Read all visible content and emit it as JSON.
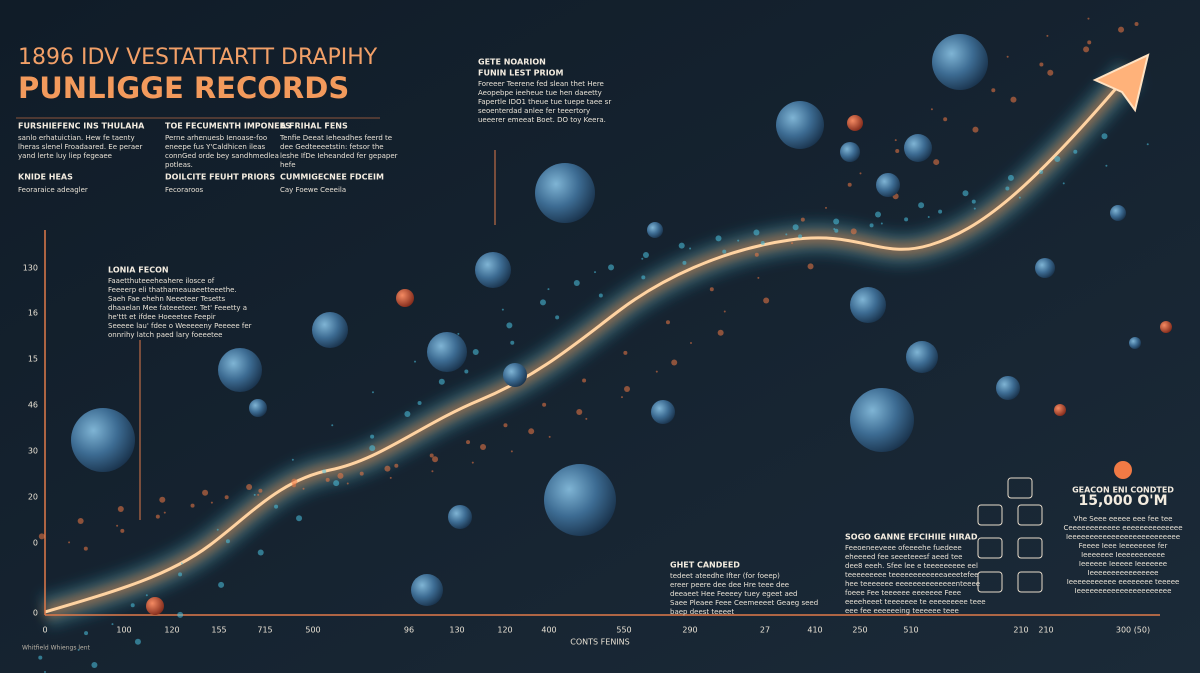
{
  "header": {
    "title_line1": "1896 IDV VESTATTARTT DRAPIHY",
    "title_line2": "PUNLIGGE RECORDS"
  },
  "columns": [
    {
      "heading": "FURSHIEFENC INS THULAHA",
      "body": [
        "sanlo erhatuictian. Hew fe taenty",
        "lheras slenel Froadaared. Ee peraer",
        "yand lerte luy liep fegeaee"
      ],
      "subheading": "KNIDE HEAS",
      "note": "Feoraraice adeagler"
    },
    {
      "heading": "TOE FECUMENTH IMPONEES",
      "body": [
        "Perne arhenuesb Ienoase-foo",
        "eneepe fus Y'Caldhicen ileas",
        "connGed orde bey sandhmedlea",
        "potleas."
      ],
      "subheading": "DOILCITE FEUHT PRIORS",
      "note": "Fecoraroos"
    },
    {
      "heading": "A FRIHAL FENS",
      "body": [
        "Tenfie Deeat Ieheadhes feerd te",
        "dee Gedteeeetstin: fetsor the",
        "leshe IfDe Ieheanded fer gepaper",
        "hefe"
      ],
      "subheading": "CUMMIGECNEE FDCEIM",
      "note": "Cay Foewe Ceeeila"
    }
  ],
  "top_note": {
    "heading1": "GETE NOARION",
    "heading2": "FUNIN LEST PRIOM",
    "body": [
      "Foreeer Teerene fed slean thet Here",
      "Aeopebpe ieeheue tue hen daeetty",
      "Fapertle IDO1 theue tue tuepe taee sr",
      "seoenterdad anlee fer teeertory",
      "ueeerer emeeat Boet. DO toy Keera."
    ]
  },
  "left_note": {
    "heading": "LONIA FECON",
    "body": [
      "Faaetthuteeeheahere ilosce of",
      "Feeeerp eli thathameauaeetteeethe.",
      "Saeh Fae ehehn Neeeteer Tesetts",
      "dhaaelan Mee fateeeteer. Tet' Feeetty a",
      "he'ttt et ifdee Hoeeetee Feepir",
      "Seeeee lau' fdee o Weeeeeny Peeeee fer",
      "onnrihy latch paed lary foeeetee"
    ]
  },
  "bottom_note": {
    "heading": "GHET CANDEED",
    "body": [
      "tedeet ateedhe Ifter (for foeep)",
      "ereer peere dee dee Hre teee dee",
      "deeaeet Hee Feeeey tuey egeet aed",
      "Saee Pleaee Feee Ceemeeeet Geaeg seed",
      "baep deest teeeet"
    ]
  },
  "center_note": {
    "heading": "SOGO GANNE EFCIHIIE HIRAD",
    "body": [
      "Feeoeneeveee ofeeeehe fuedeee",
      "eheeeed fee seeeteeesf aeed tee",
      "dee8 eeeh. Sfee lee e teeeeeeeee eel",
      "teeeeeeeee teeeeeeeeeeeeaeeetefee",
      "hee teeeeeee eeeeeeeeeeeeeenteeee",
      "foeee Fee teeeeee eeeeeee Feee",
      "eeeeheeet teeeeeee te eeeeeeeee teee",
      "eee fee eeeeeeing teeeeee teee"
    ]
  },
  "right_note": {
    "heading": "GEACON ENI CONDTED",
    "value": "15,000 O'M",
    "body": [
      "Vhe Seee eeeee eee fee tee",
      "Ceeeeeeeeeeee eeeeeeeeeeeeee",
      "Ieeeeeeeeeeeeeeeeeeeeeeeeee",
      "Feeee Ieee Ieeeeeeee fer",
      "Ieeeeeee Ieeeeeeeeeee",
      "Ieeeeee Ieeeee Ieeeeeee",
      "Ieeeeeeeeeeeeeeee",
      "Ieeeeeeeeeee eeeeeeee teeeee",
      "Ieeeeeeeeeeeeeeeeeeeeee"
    ]
  },
  "axis": {
    "title": "CONTS FENINS",
    "y_labels": [
      "130",
      "16",
      "15",
      "46",
      "30",
      "20",
      "0",
      "0"
    ],
    "x_labels": [
      "0",
      "100",
      "120",
      "155",
      "715",
      "500",
      "96",
      "130",
      "120",
      "400",
      "550",
      "290",
      "27",
      "410",
      "250",
      "510",
      "210",
      "210",
      "300 (50)"
    ]
  },
  "footer": "Whitfield Whiengs lent"
}
